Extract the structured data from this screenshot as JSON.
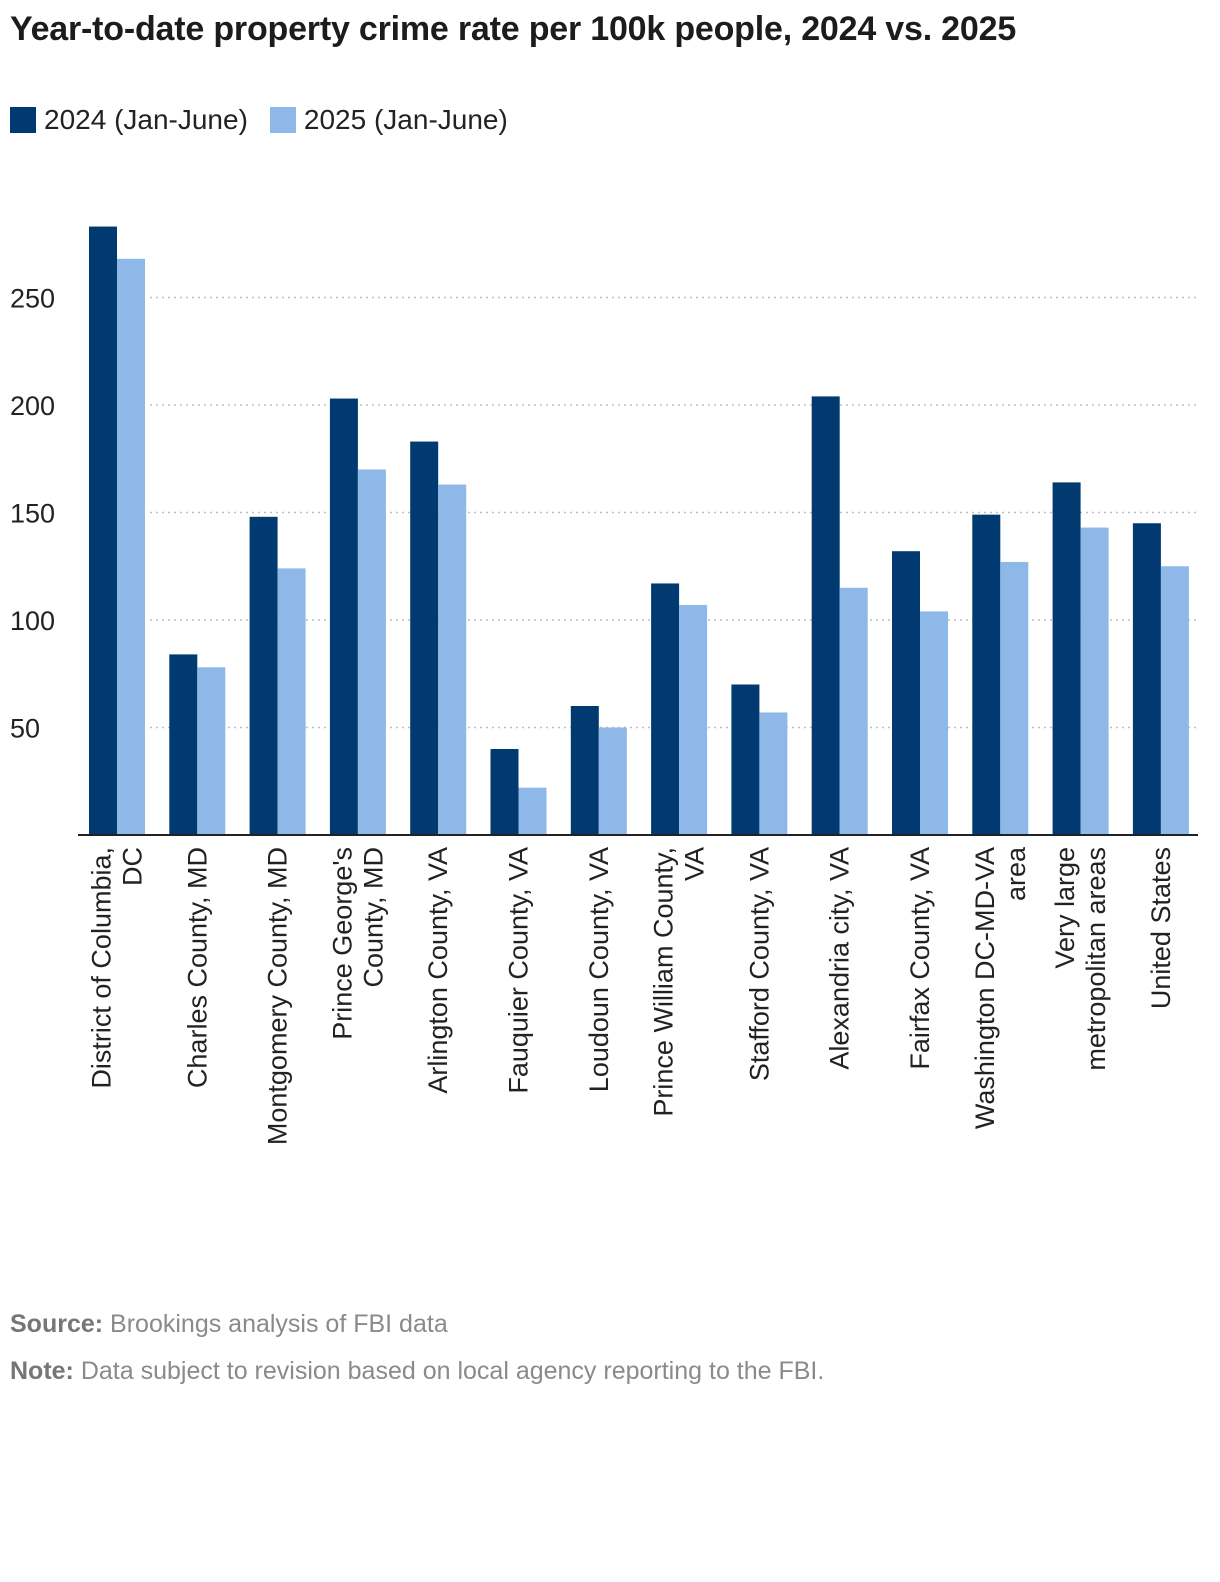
{
  "title": "Year-to-date property crime rate per 100k people, 2024 vs. 2025",
  "colors": {
    "series_2024": "#003a70",
    "series_2025": "#8db8e8",
    "grid": "#bdbdbd",
    "axis": "#222222"
  },
  "chart_data": {
    "type": "bar",
    "categories": [
      "District of Columbia, DC",
      "Charles County, MD",
      "Montgomery County, MD",
      "Prince George's County, MD",
      "Arlington County, VA",
      "Fauquier County, VA",
      "Loudoun County, VA",
      "Prince William County, VA",
      "Stafford County, VA",
      "Alexandria city, VA",
      "Fairfax County, VA",
      "Washington DC-MD-VA area",
      "Very large metropolitan areas",
      "United States"
    ],
    "series": [
      {
        "name": "2024 (Jan-June)",
        "values": [
          283,
          84,
          148,
          203,
          183,
          40,
          60,
          117,
          70,
          204,
          132,
          149,
          164,
          145
        ]
      },
      {
        "name": "2025 (Jan-June)",
        "values": [
          268,
          78,
          124,
          170,
          163,
          22,
          50,
          107,
          57,
          115,
          104,
          127,
          143,
          125
        ]
      }
    ],
    "yticks": [
      50,
      100,
      150,
      200,
      250
    ],
    "ylim": [
      0,
      290
    ],
    "grid": true,
    "legend": "top-left"
  },
  "footer": {
    "source_label": "Source:",
    "source_text": "Brookings analysis of FBI data",
    "note_label": "Note:",
    "note_text": "Data subject to revision based on local agency reporting to the FBI."
  }
}
